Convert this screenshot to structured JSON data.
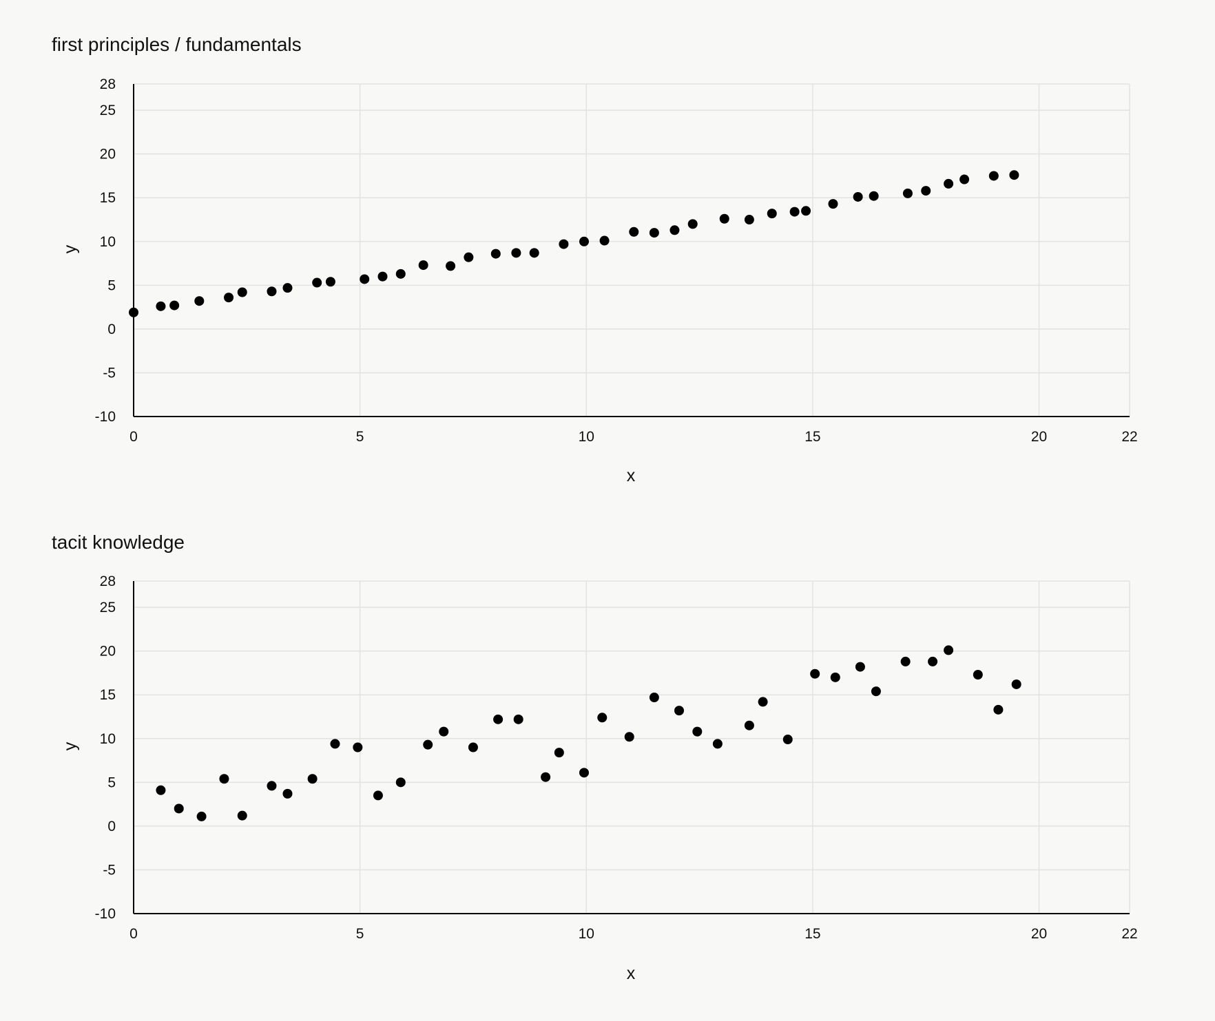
{
  "chart_data": [
    {
      "type": "scatter",
      "title": "first principles / fundamentals",
      "xlabel": "x",
      "ylabel": "y",
      "xlim": [
        0,
        22
      ],
      "ylim": [
        -10,
        28
      ],
      "xticks": [
        0,
        5,
        10,
        15,
        20,
        22
      ],
      "yticks": [
        -10,
        -5,
        0,
        5,
        10,
        15,
        20,
        25,
        28
      ],
      "grid": true,
      "series": [
        {
          "points": [
            [
              0.0,
              1.9
            ],
            [
              0.6,
              2.6
            ],
            [
              0.9,
              2.7
            ],
            [
              1.45,
              3.2
            ],
            [
              2.1,
              3.6
            ],
            [
              2.4,
              4.2
            ],
            [
              3.05,
              4.3
            ],
            [
              3.4,
              4.7
            ],
            [
              4.05,
              5.3
            ],
            [
              4.35,
              5.4
            ],
            [
              5.1,
              5.7
            ],
            [
              5.5,
              6.0
            ],
            [
              5.9,
              6.3
            ],
            [
              6.4,
              7.3
            ],
            [
              7.0,
              7.2
            ],
            [
              7.4,
              8.2
            ],
            [
              8.0,
              8.6
            ],
            [
              8.45,
              8.7
            ],
            [
              8.85,
              8.7
            ],
            [
              9.5,
              9.7
            ],
            [
              9.95,
              10.0
            ],
            [
              10.4,
              10.1
            ],
            [
              11.05,
              11.1
            ],
            [
              11.5,
              11.0
            ],
            [
              11.95,
              11.3
            ],
            [
              12.35,
              12.0
            ],
            [
              13.05,
              12.6
            ],
            [
              13.6,
              12.5
            ],
            [
              14.1,
              13.2
            ],
            [
              14.6,
              13.4
            ],
            [
              14.85,
              13.5
            ],
            [
              15.45,
              14.3
            ],
            [
              16.0,
              15.1
            ],
            [
              16.35,
              15.2
            ],
            [
              17.1,
              15.5
            ],
            [
              17.5,
              15.8
            ],
            [
              18.0,
              16.6
            ],
            [
              18.35,
              17.1
            ],
            [
              19.0,
              17.5
            ],
            [
              19.45,
              17.6
            ]
          ]
        }
      ]
    },
    {
      "type": "scatter",
      "title": "tacit knowledge",
      "xlabel": "x",
      "ylabel": "y",
      "xlim": [
        0,
        22
      ],
      "ylim": [
        -10,
        28
      ],
      "xticks": [
        0,
        5,
        10,
        15,
        20,
        22
      ],
      "yticks": [
        -10,
        -5,
        0,
        5,
        10,
        15,
        20,
        25,
        28
      ],
      "grid": true,
      "series": [
        {
          "points": [
            [
              0.6,
              4.1
            ],
            [
              1.0,
              2.0
            ],
            [
              1.5,
              1.1
            ],
            [
              2.0,
              5.4
            ],
            [
              2.4,
              1.2
            ],
            [
              3.05,
              4.6
            ],
            [
              3.4,
              3.7
            ],
            [
              3.95,
              5.4
            ],
            [
              4.45,
              9.4
            ],
            [
              4.95,
              9.0
            ],
            [
              5.4,
              3.5
            ],
            [
              5.9,
              5.0
            ],
            [
              6.5,
              9.3
            ],
            [
              6.85,
              10.8
            ],
            [
              7.5,
              9.0
            ],
            [
              8.05,
              12.2
            ],
            [
              8.5,
              12.2
            ],
            [
              9.1,
              5.6
            ],
            [
              9.4,
              8.4
            ],
            [
              9.95,
              6.1
            ],
            [
              10.35,
              12.4
            ],
            [
              10.95,
              10.2
            ],
            [
              11.5,
              14.7
            ],
            [
              12.05,
              13.2
            ],
            [
              12.45,
              10.8
            ],
            [
              12.9,
              9.4
            ],
            [
              13.6,
              11.5
            ],
            [
              13.9,
              14.2
            ],
            [
              14.45,
              9.9
            ],
            [
              15.05,
              17.4
            ],
            [
              15.5,
              17.0
            ],
            [
              16.05,
              18.2
            ],
            [
              16.4,
              15.4
            ],
            [
              17.05,
              18.8
            ],
            [
              17.65,
              18.8
            ],
            [
              18.0,
              20.1
            ],
            [
              18.65,
              17.3
            ],
            [
              19.1,
              13.3
            ],
            [
              19.5,
              16.2
            ]
          ]
        }
      ]
    }
  ]
}
